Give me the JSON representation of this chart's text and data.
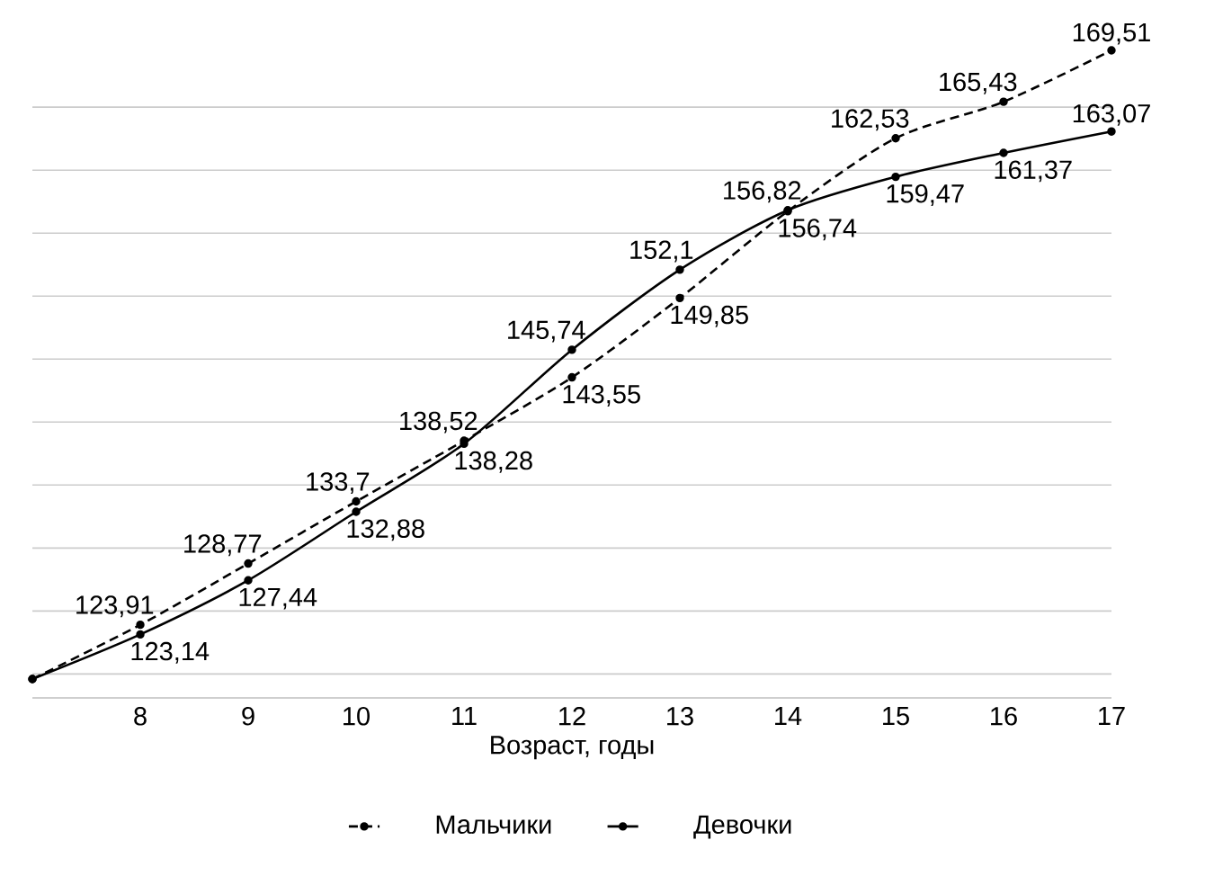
{
  "chart_data": {
    "type": "line",
    "xlabel": "Возраст, годы",
    "categories": [
      null,
      "8",
      "9",
      "10",
      "11",
      "12",
      "13",
      "14",
      "15",
      "16",
      "17"
    ],
    "series": [
      {
        "name": "Мальчики",
        "color": "#000000",
        "line_style": "dashed",
        "values": [
          119.6,
          123.91,
          128.77,
          133.7,
          138.52,
          143.55,
          149.85,
          156.74,
          162.53,
          165.43,
          169.51
        ],
        "value_labels": [
          null,
          "123,91",
          "128,77",
          "133,7",
          "138,52",
          "143,55",
          "149,85",
          "156,74",
          "162,53",
          "165,43",
          "169,51"
        ]
      },
      {
        "name": "Девочки",
        "color": "#000000",
        "line_style": "solid",
        "values": [
          119.6,
          123.14,
          127.44,
          132.88,
          138.28,
          145.74,
          152.1,
          156.82,
          159.47,
          161.37,
          163.07
        ],
        "value_labels": [
          null,
          "123,14",
          "127,44",
          "132,88",
          "138,28",
          "145,74",
          "152,1",
          "156,82",
          "159,47",
          "161,37",
          "163,07"
        ]
      }
    ],
    "grid": "y",
    "tick_labels": "x",
    "legend": "bottom",
    "marker": "circle"
  }
}
